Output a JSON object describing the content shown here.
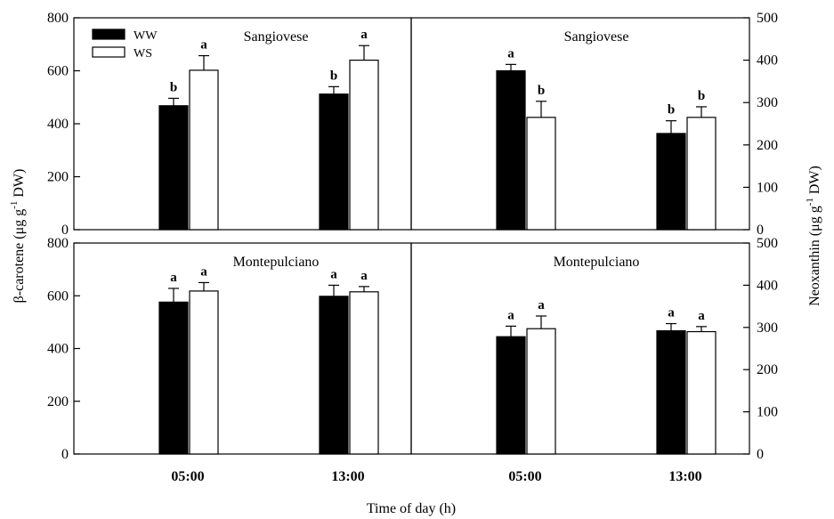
{
  "chart_data": {
    "type": "bar",
    "xlabel": "Time of day (h)",
    "left_ylabel": "β-carotene (μg g-1 DW)",
    "left_ylabel_parts": [
      "β-carotene (μg g",
      "-1",
      " DW)"
    ],
    "right_ylabel": "Neoxanthin (μg g-1 DW)",
    "right_ylabel_parts": [
      "Neoxanthin (μg g",
      "-1",
      " DW)"
    ],
    "categories": [
      "05:00",
      "13:00"
    ],
    "series_names": [
      "WW",
      "WS"
    ],
    "series_colors": [
      "#000000",
      "#ffffff"
    ],
    "legend_position": "top-left of top-left panel",
    "grid": false,
    "panels": [
      {
        "id": "beta-carotene-sangiovese",
        "title": "Sangiovese",
        "variable": "β-carotene",
        "axis": "left",
        "ylim": [
          0,
          800
        ],
        "yticks": [
          0,
          200,
          400,
          600,
          800
        ],
        "series": [
          {
            "name": "WW",
            "values": [
              468,
              512
            ],
            "errors": [
              28,
              28
            ],
            "letters": [
              "b",
              "b"
            ]
          },
          {
            "name": "WS",
            "values": [
              602,
              640
            ],
            "errors": [
              55,
              55
            ],
            "letters": [
              "a",
              "a"
            ]
          }
        ]
      },
      {
        "id": "neoxanthin-sangiovese",
        "title": "Sangiovese",
        "variable": "Neoxanthin",
        "axis": "right",
        "ylim": [
          0,
          500
        ],
        "yticks": [
          0,
          100,
          200,
          300,
          400,
          500
        ],
        "series": [
          {
            "name": "WW",
            "values": [
              375,
              227
            ],
            "errors": [
              15,
              30
            ],
            "letters": [
              "a",
              "b"
            ]
          },
          {
            "name": "WS",
            "values": [
              265,
              265
            ],
            "errors": [
              38,
              25
            ],
            "letters": [
              "b",
              "b"
            ]
          }
        ]
      },
      {
        "id": "beta-carotene-montepulciano",
        "title": "Montepulciano",
        "variable": "β-carotene",
        "axis": "left",
        "ylim": [
          0,
          800
        ],
        "yticks": [
          0,
          200,
          400,
          600,
          800
        ],
        "series": [
          {
            "name": "WW",
            "values": [
              576,
              598
            ],
            "errors": [
              52,
              42
            ],
            "letters": [
              "a",
              "a"
            ]
          },
          {
            "name": "WS",
            "values": [
              618,
              615
            ],
            "errors": [
              32,
              20
            ],
            "letters": [
              "a",
              "a"
            ]
          }
        ]
      },
      {
        "id": "neoxanthin-montepulciano",
        "title": "Montepulciano",
        "variable": "Neoxanthin",
        "axis": "right",
        "ylim": [
          0,
          500
        ],
        "yticks": [
          0,
          100,
          200,
          300,
          400,
          500
        ],
        "series": [
          {
            "name": "WW",
            "values": [
              278,
              292
            ],
            "errors": [
              25,
              17
            ],
            "letters": [
              "a",
              "a"
            ]
          },
          {
            "name": "WS",
            "values": [
              297,
              290
            ],
            "errors": [
              30,
              12
            ],
            "letters": [
              "a",
              "a"
            ]
          }
        ]
      }
    ]
  }
}
